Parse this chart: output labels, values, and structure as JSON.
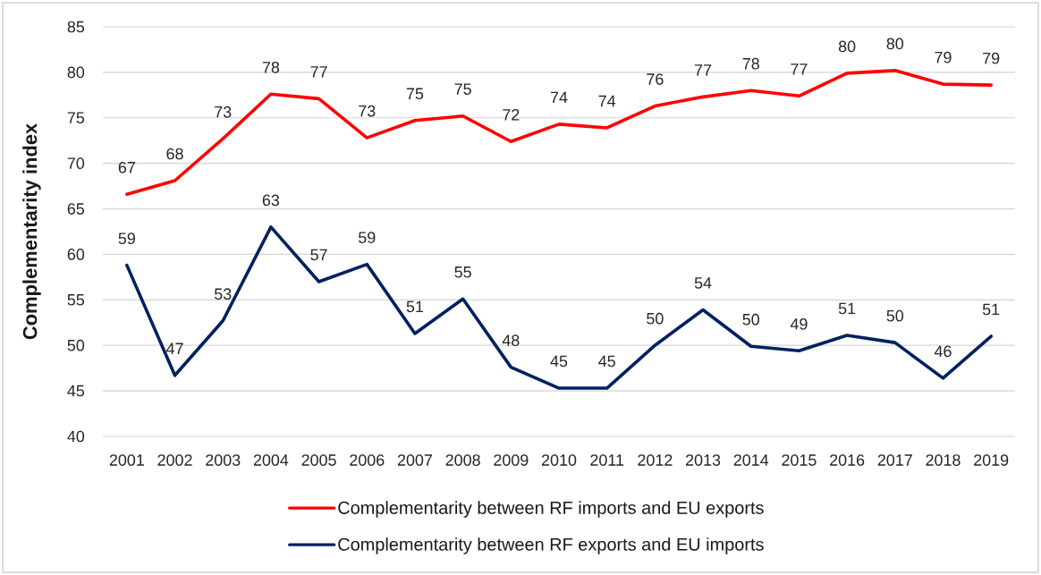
{
  "chart_data": {
    "type": "line",
    "ylabel": "Complementarity index",
    "categories": [
      "2001",
      "2002",
      "2003",
      "2004",
      "2005",
      "2006",
      "2007",
      "2008",
      "2009",
      "2010",
      "2011",
      "2012",
      "2013",
      "2014",
      "2015",
      "2016",
      "2017",
      "2018",
      "2019"
    ],
    "series": [
      {
        "name": "Complementarity between RF imports and EU exports",
        "color": "#ff0000",
        "values": [
          66.6,
          68.1,
          72.7,
          77.6,
          77.1,
          72.8,
          74.7,
          75.2,
          72.4,
          74.3,
          73.9,
          76.3,
          77.3,
          78.0,
          77.4,
          79.9,
          80.2,
          78.7,
          78.6
        ],
        "value_labels": [
          "67",
          "68",
          "73",
          "78",
          "77",
          "73",
          "75",
          "75",
          "72",
          "74",
          "74",
          "76",
          "77",
          "78",
          "77",
          "80",
          "80",
          "79",
          "79"
        ]
      },
      {
        "name": "Complementarity between RF exports and EU imports",
        "color": "#002060",
        "values": [
          58.8,
          46.7,
          52.7,
          63.0,
          57.0,
          58.9,
          51.3,
          55.1,
          47.6,
          45.3,
          45.3,
          50.0,
          53.9,
          49.9,
          49.4,
          51.1,
          50.3,
          46.4,
          51.0
        ],
        "value_labels": [
          "59",
          "47",
          "53",
          "63",
          "57",
          "59",
          "51",
          "55",
          "48",
          "45",
          "45",
          "50",
          "54",
          "50",
          "49",
          "51",
          "50",
          "46",
          "51"
        ]
      }
    ],
    "ylim": [
      40,
      85
    ],
    "yticks": [
      40,
      45,
      50,
      55,
      60,
      65,
      70,
      75,
      80,
      85
    ],
    "grid": "y",
    "legend": "bottom",
    "marker": "none",
    "line_style": "solid"
  }
}
